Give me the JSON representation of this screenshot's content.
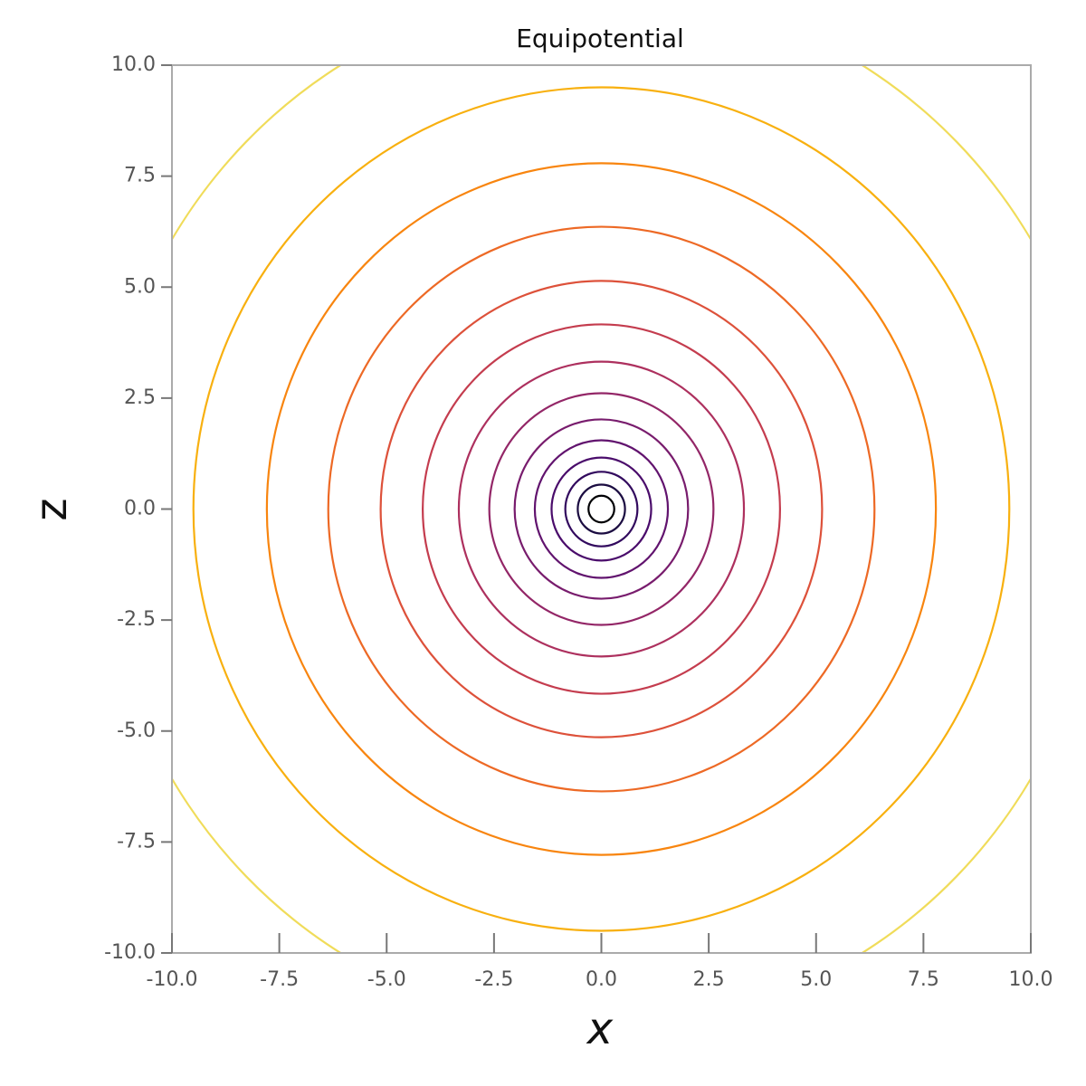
{
  "chart_data": {
    "type": "contour",
    "title": "Equipotential",
    "xlabel": "x",
    "ylabel": "z",
    "radii": [
      0.3,
      0.55,
      0.84,
      1.16,
      1.55,
      2.02,
      2.61,
      3.32,
      4.16,
      5.14,
      6.36,
      7.79,
      9.5,
      11.7
    ],
    "colors": [
      "#000004",
      "#1b0c41",
      "#320a5e",
      "#4a0c6b",
      "#61136e",
      "#781c6d",
      "#932667",
      "#ad305e",
      "#c43c4e",
      "#dd513a",
      "#ed6925",
      "#f8850f",
      "#f8b00f",
      "#f0dc5a"
    ],
    "xlim": [
      -10,
      10
    ],
    "ylim": [
      -10,
      10
    ],
    "xticks": [
      {
        "value": -10,
        "label": "-10.0"
      },
      -7.5,
      {
        "value": -5,
        "label": "-5.0"
      },
      -2.5,
      {
        "value": 0,
        "label": "0.0"
      },
      2.5,
      {
        "value": 5,
        "label": "5.0"
      },
      7.5,
      {
        "value": 10,
        "label": "10.0"
      }
    ],
    "yticks": [
      {
        "value": -10,
        "label": "-10.0"
      },
      -7.5,
      {
        "value": -5,
        "label": "-5.0"
      },
      -2.5,
      {
        "value": 0,
        "label": "0.0"
      },
      2.5,
      {
        "value": 5,
        "label": "5.0"
      },
      7.5,
      {
        "value": 10,
        "label": "10.0"
      }
    ]
  }
}
